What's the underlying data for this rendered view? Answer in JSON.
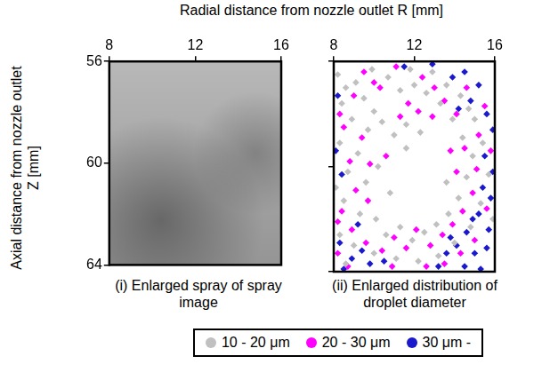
{
  "chart_data": [
    {
      "type": "image",
      "title": "(i) Enlarged spray of spray image",
      "xlabel": "Radial distance from nozzle outlet R [mm]",
      "ylabel": "Axial distance from nozzle outlet Z [mm]",
      "xlim": [
        8,
        16
      ],
      "xticks": [
        8,
        12,
        16
      ],
      "ylim": [
        64,
        56
      ],
      "yticks": [
        56,
        60,
        64
      ],
      "grid": false
    },
    {
      "type": "scatter",
      "title": "(ii) Enlarged distribution of droplet diameter",
      "xlim": [
        8,
        16
      ],
      "xticks": [
        8,
        12,
        16
      ],
      "ylim": [
        64,
        56
      ],
      "yticks": [
        56,
        60,
        64
      ],
      "grid": false,
      "tick_labels": "x",
      "legend": "bottom",
      "marker": "diamond",
      "series": [
        {
          "name": "10 - 20 μm",
          "color": "#c0c0c0",
          "x": [
            8.2,
            8.6,
            9.1,
            8.4,
            9.5,
            10.0,
            8.9,
            9.7,
            10.4,
            11.0,
            11.6,
            8.3,
            9.2,
            8.7,
            9.6,
            10.2,
            8.5,
            9.3,
            10.1,
            10.6,
            11.3,
            11.9,
            12.5,
            13.1,
            13.7,
            14.2,
            14.6,
            14.9,
            14.4,
            13.9,
            13.3,
            12.6,
            12.0,
            11.3,
            10.7,
            11.8,
            12.9,
            13.6,
            14.3,
            15.0,
            15.4,
            15.7,
            15.3,
            14.8,
            14.0,
            13.2,
            12.2,
            11.1,
            10.0,
            9.0,
            8.3,
            8.1,
            10.8,
            13.6,
            12.3,
            11.6,
            9.9,
            14.7,
            15.9,
            8.6
          ],
          "values": [
            56.5,
            57.0,
            56.8,
            57.6,
            57.4,
            57.9,
            58.2,
            58.6,
            58.3,
            58.8,
            58.4,
            59.1,
            59.5,
            60.2,
            60.6,
            60.0,
            61.3,
            61.8,
            62.0,
            62.6,
            62.3,
            62.8,
            62.5,
            62.2,
            61.8,
            61.2,
            60.4,
            59.6,
            58.9,
            58.2,
            57.6,
            57.2,
            56.9,
            57.1,
            56.6,
            56.3,
            56.4,
            56.9,
            57.3,
            58.2,
            59.1,
            60.3,
            61.4,
            62.3,
            62.9,
            63.4,
            63.6,
            63.5,
            63.3,
            63.0,
            62.6,
            60.8,
            61.0,
            60.6,
            58.7,
            59.3,
            56.3,
            57.8,
            62.0,
            63.7
          ]
        },
        {
          "name": "20 - 30 μm",
          "color": "#ff00ff",
          "x": [
            9.0,
            9.5,
            10.3,
            11.1,
            11.7,
            12.4,
            13.0,
            13.5,
            8.5,
            9.4,
            8.8,
            9.1,
            8.4,
            9.7,
            8.9,
            9.6,
            10.4,
            11.0,
            11.6,
            12.1,
            12.8,
            13.4,
            13.9,
            14.4,
            14.9,
            14.1,
            15.1,
            14.5,
            15.2,
            14.1,
            14.6,
            15.5,
            13.8,
            15.6,
            15.0,
            14.3,
            13.5,
            12.6,
            10.9,
            8.2,
            8.7,
            10.6,
            11.3,
            12.9,
            8.3,
            10.0,
            12.2,
            15.8,
            9.8,
            8.2
          ],
          "values": [
            57.3,
            56.4,
            57.0,
            56.2,
            57.6,
            56.6,
            57.0,
            57.5,
            58.5,
            58.9,
            59.8,
            60.9,
            61.7,
            61.3,
            62.4,
            62.9,
            63.2,
            62.7,
            63.1,
            62.4,
            63.0,
            62.6,
            62.2,
            61.7,
            61.0,
            60.2,
            60.1,
            59.3,
            58.8,
            58.0,
            57.0,
            57.7,
            59.4,
            61.6,
            62.8,
            63.3,
            63.7,
            63.8,
            63.8,
            63.3,
            63.8,
            59.6,
            58.1,
            58.1,
            58.0,
            56.8,
            57.9,
            59.4,
            59.9,
            62.1
          ]
        },
        {
          "name": "30 μm -",
          "color": "#1a1acc",
          "x": [
            13.9,
            14.5,
            15.2,
            14.8,
            15.6,
            14.2,
            15.9,
            15.5,
            15.9,
            15.4,
            15.8,
            15.2,
            15.7,
            14.6,
            14.1,
            15.0,
            15.6,
            13.6,
            14.5,
            15.3,
            13.2,
            14.9,
            13.8,
            8.3,
            8.9,
            9.4,
            8.5,
            9.8,
            8.1,
            8.4,
            8.2,
            11.5,
            10.5,
            12.9,
            9.2
          ],
          "values": [
            56.6,
            56.4,
            56.9,
            57.5,
            58.0,
            57.8,
            58.6,
            59.6,
            60.2,
            60.8,
            61.2,
            61.8,
            62.4,
            62.5,
            63.0,
            63.3,
            63.1,
            63.3,
            63.8,
            63.9,
            63.8,
            62.0,
            62.7,
            62.9,
            63.5,
            63.2,
            63.9,
            63.7,
            59.4,
            60.3,
            57.3,
            56.2,
            63.6,
            56.1,
            62.2
          ]
        }
      ]
    }
  ]
}
